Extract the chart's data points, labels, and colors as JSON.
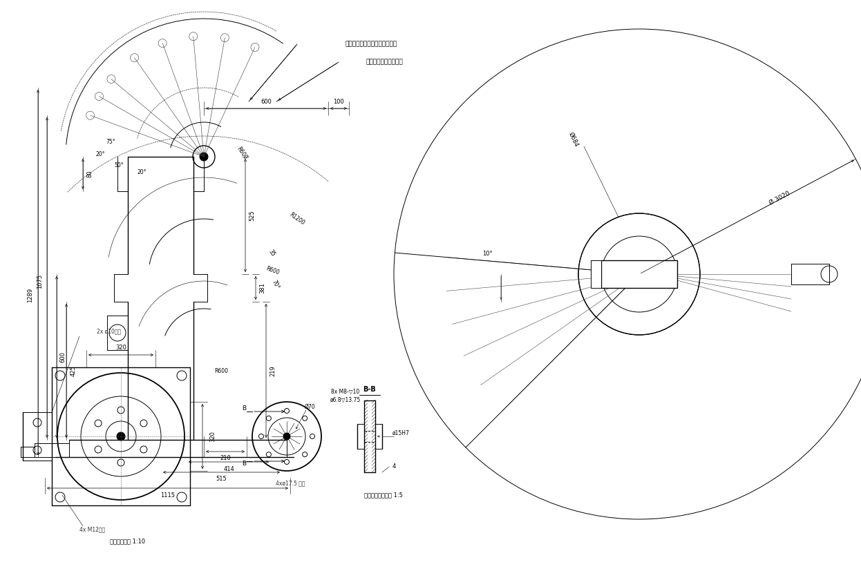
{
  "bg_color": "#ffffff",
  "line_color": "#000000",
  "annotation_color": "#000000",
  "fig_width": 12.46,
  "fig_height": 8.27,
  "labels": {
    "top_label1": "小臂与手腕旋转轴轴心运动范围",
    "top_label2": "末端法兰中心运动范围",
    "bottom_label1": "底座安装尺寸 1:10",
    "bottom_label2": "末端法兰安装尺寸 1:5",
    "bottom_label3": "2x ø10贯穿",
    "bottom_label4": "4x M12贯穿",
    "bottom_label5": "8x M8-▽10",
    "bottom_label6": "ø6.8▽13.75",
    "bottom_label7": "4xø17.5 贯穿",
    "bottom_label8": "B-B",
    "bottom_label9": "ø15H7",
    "bottom_label10": "ø70",
    "d600": "600",
    "d100": "100",
    "d80": "80",
    "d600v": "600",
    "d425": "425",
    "d1289": "1289",
    "d1075": "1075",
    "d210": "210",
    "d414": "414",
    "d515": "515",
    "d1115": "1115",
    "d525": "525",
    "d381": "381",
    "d219": "219",
    "d75": "75°",
    "d20a": "20°",
    "d50": "50°",
    "d20b": "20°",
    "d35": "35",
    "d70": "70°",
    "dR1200": "R1200",
    "dR600a": "R600",
    "dR600b": "R600",
    "dR600c": "R600",
    "dD3020": "Ø 3020",
    "dD684": "Ø684",
    "d10deg": "10°",
    "d320h": "320",
    "d320v": "320",
    "d4": "4"
  }
}
